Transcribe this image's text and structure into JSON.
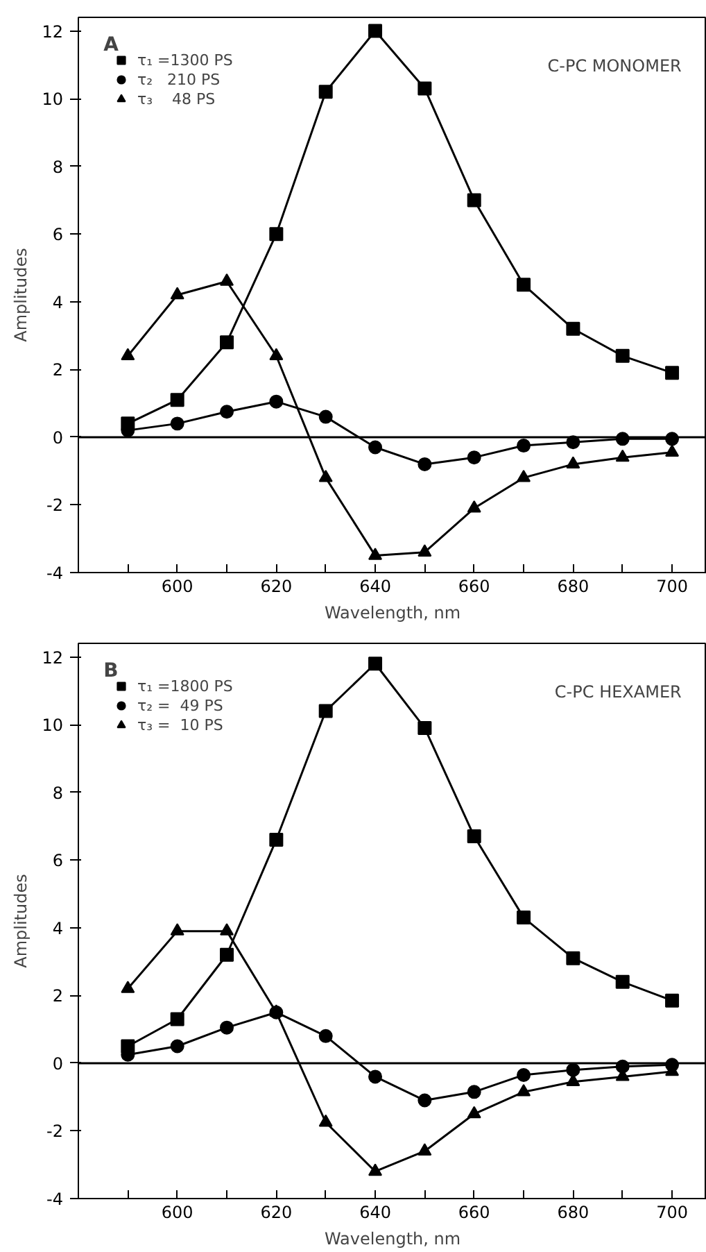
{
  "chart_data": [
    {
      "type": "line",
      "xlabel": "Wavelength, nm",
      "ylabel": "Amplitudes",
      "annotations": [
        "A",
        "C-PC MONOMER"
      ],
      "x": [
        590,
        600,
        610,
        620,
        630,
        640,
        650,
        660,
        670,
        680,
        690,
        700
      ],
      "xlim": [
        580,
        707
      ],
      "ylim": [
        -4,
        12.4
      ],
      "xticks": [
        {
          "value": 590,
          "label": null
        },
        600,
        {
          "value": 610,
          "label": null
        },
        620,
        {
          "value": 630,
          "label": null
        },
        640,
        {
          "value": 650,
          "label": null
        },
        660,
        {
          "value": 670,
          "label": null
        },
        680,
        {
          "value": 690,
          "label": null
        },
        700
      ],
      "yticks": [
        -4,
        -2,
        0,
        2,
        4,
        6,
        8,
        10,
        12
      ],
      "ref_lines": [
        {
          "axis": "y",
          "value": 0,
          "color": "#000000"
        }
      ],
      "legend": "top left",
      "grid": false,
      "series": [
        {
          "name": "τ₁ =1300 PS",
          "color": "#000000",
          "marker": "square",
          "values": [
            0.4,
            1.1,
            2.8,
            6.0,
            10.2,
            12.0,
            10.3,
            7.0,
            4.5,
            3.2,
            2.4,
            1.9
          ]
        },
        {
          "name": "τ₂   210 PS",
          "color": "#000000",
          "marker": "circle",
          "values": [
            0.2,
            0.4,
            0.75,
            1.05,
            0.6,
            -0.3,
            -0.8,
            -0.6,
            -0.25,
            -0.15,
            -0.05,
            -0.05
          ]
        },
        {
          "name": "τ₃    48 PS",
          "color": "#000000",
          "marker": "triangle",
          "values": [
            2.4,
            4.2,
            4.6,
            2.4,
            -1.2,
            -3.5,
            -3.4,
            -2.1,
            -1.2,
            -0.8,
            -0.6,
            -0.45
          ]
        }
      ]
    },
    {
      "type": "line",
      "xlabel": "Wavelength, nm",
      "ylabel": "Amplitudes",
      "annotations": [
        "B",
        "C-PC HEXAMER"
      ],
      "x": [
        590,
        600,
        610,
        620,
        630,
        640,
        650,
        660,
        670,
        680,
        690,
        700
      ],
      "xlim": [
        580,
        707
      ],
      "ylim": [
        -4,
        12.4
      ],
      "xticks": [
        {
          "value": 590,
          "label": null
        },
        600,
        {
          "value": 610,
          "label": null
        },
        620,
        {
          "value": 630,
          "label": null
        },
        640,
        {
          "value": 650,
          "label": null
        },
        660,
        {
          "value": 670,
          "label": null
        },
        680,
        {
          "value": 690,
          "label": null
        },
        700
      ],
      "yticks": [
        -4,
        -2,
        0,
        2,
        4,
        6,
        8,
        10,
        12
      ],
      "ref_lines": [
        {
          "axis": "y",
          "value": 0,
          "color": "#000000"
        }
      ],
      "legend": "top left",
      "grid": false,
      "series": [
        {
          "name": "τ₁ =1800 PS",
          "color": "#000000",
          "marker": "square",
          "values": [
            0.5,
            1.3,
            3.2,
            6.6,
            10.4,
            11.8,
            9.9,
            6.7,
            4.3,
            3.1,
            2.4,
            1.85
          ]
        },
        {
          "name": "τ₂ =  49 PS",
          "color": "#000000",
          "marker": "circle",
          "values": [
            0.25,
            0.5,
            1.05,
            1.5,
            0.8,
            -0.4,
            -1.1,
            -0.85,
            -0.35,
            -0.2,
            -0.1,
            -0.05
          ]
        },
        {
          "name": "τ₃ =  10 PS",
          "color": "#000000",
          "marker": "triangle",
          "values": [
            2.2,
            3.9,
            3.9,
            1.5,
            -1.75,
            -3.2,
            -2.6,
            -1.5,
            -0.85,
            -0.55,
            -0.4,
            -0.25
          ]
        }
      ]
    }
  ]
}
